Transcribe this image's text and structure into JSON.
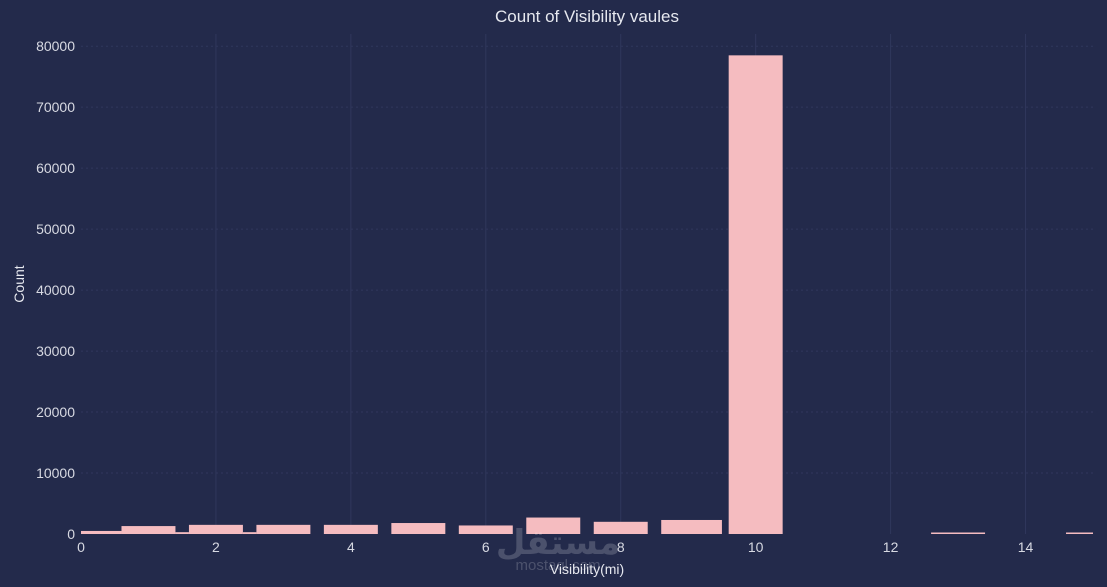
{
  "chart_data": {
    "type": "bar",
    "title": "Count of Visibility vaules",
    "xlabel": "Visibility(mi)",
    "ylabel": "Count",
    "xlim": [
      0,
      15
    ],
    "ylim": [
      0,
      82000
    ],
    "xticks": [
      0,
      2,
      4,
      6,
      8,
      10,
      12,
      14
    ],
    "yticks": [
      0,
      10000,
      20000,
      30000,
      40000,
      50000,
      60000,
      70000,
      80000
    ],
    "grid": true,
    "bars": [
      {
        "x0": 0.0,
        "x1": 0.6,
        "value": 500
      },
      {
        "x0": 0.6,
        "x1": 1.4,
        "value": 1300
      },
      {
        "x0": 1.4,
        "x1": 1.6,
        "value": 300
      },
      {
        "x0": 1.6,
        "x1": 2.4,
        "value": 1500
      },
      {
        "x0": 2.4,
        "x1": 2.6,
        "value": 300
      },
      {
        "x0": 2.6,
        "x1": 3.4,
        "value": 1500
      },
      {
        "x0": 3.6,
        "x1": 4.4,
        "value": 1500
      },
      {
        "x0": 4.6,
        "x1": 5.4,
        "value": 1800
      },
      {
        "x0": 5.6,
        "x1": 6.4,
        "value": 1400
      },
      {
        "x0": 6.6,
        "x1": 7.4,
        "value": 2700
      },
      {
        "x0": 7.6,
        "x1": 8.4,
        "value": 2000
      },
      {
        "x0": 8.6,
        "x1": 9.5,
        "value": 2300
      },
      {
        "x0": 9.6,
        "x1": 10.4,
        "value": 78500
      },
      {
        "x0": 12.6,
        "x1": 13.4,
        "value": 150
      },
      {
        "x0": 14.6,
        "x1": 15.0,
        "value": 150
      }
    ],
    "colors": {
      "background": "#232a4b",
      "bar": "#f5bcc0",
      "grid": "#30375c",
      "text": "#d7d9e2"
    }
  },
  "watermark": {
    "arabic": "مستقل",
    "latin": "mostaql.com"
  }
}
